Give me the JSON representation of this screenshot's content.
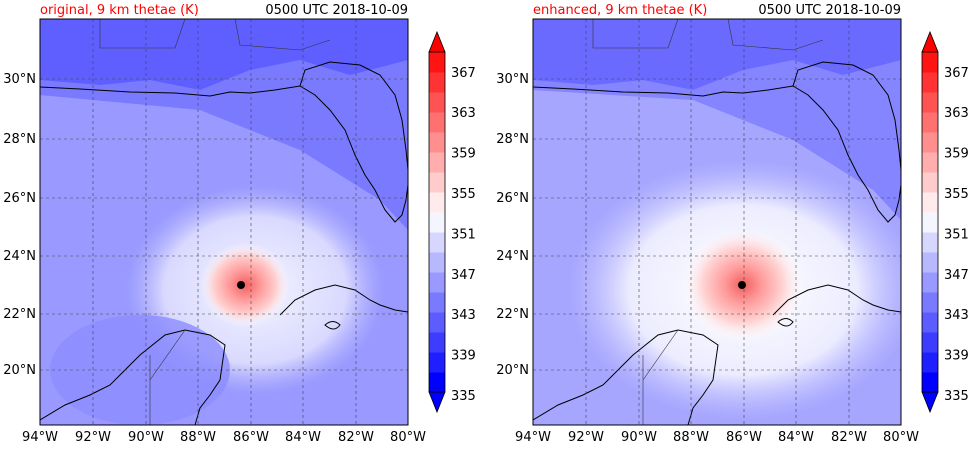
{
  "panels": [
    {
      "title": "original, 9 km thetae (K)",
      "time": "0500 UTC 2018-10-09",
      "storm_center": {
        "lon": -86.4,
        "lat": 23.0
      },
      "core": {
        "max_thetae_color": "#f07070",
        "radius_deg": 1.4
      }
    },
    {
      "title": "enhanced, 9 km thetae (K)",
      "time": "0500 UTC 2018-10-09",
      "storm_center": {
        "lon": -86.0,
        "lat": 23.0
      },
      "core": {
        "max_thetae_color": "#f07070",
        "radius_deg": 1.9
      }
    }
  ],
  "map": {
    "lon_ticks": [
      "94°W",
      "92°W",
      "90°W",
      "88°W",
      "86°W",
      "84°W",
      "82°W",
      "80°W"
    ],
    "lat_ticks": [
      "20°N",
      "22°N",
      "24°N",
      "26°N",
      "28°N",
      "30°N"
    ],
    "lon_range": [
      -94,
      -80
    ],
    "lat_range": [
      18.2,
      31.9
    ]
  },
  "colorbar": {
    "tick_labels": [
      "335",
      "339",
      "343",
      "347",
      "351",
      "355",
      "359",
      "363",
      "367"
    ],
    "colors": [
      "#0000ff",
      "#1f1fff",
      "#3d3dff",
      "#5c5cff",
      "#7a7aff",
      "#9999ff",
      "#b8b8ff",
      "#d6d6ff",
      "#f5f5ff",
      "#ffebeb",
      "#ffcccc",
      "#ffadad",
      "#ff8f8f",
      "#ff7070",
      "#ff5252",
      "#ff3333",
      "#ff1414"
    ],
    "under_color": "#0000ff",
    "over_color": "#ff0000"
  },
  "colors": {
    "background_field": "#7a7aff",
    "gulf_field": "#9999ff",
    "coast": "#000000",
    "title_accent": "#ff0000"
  }
}
